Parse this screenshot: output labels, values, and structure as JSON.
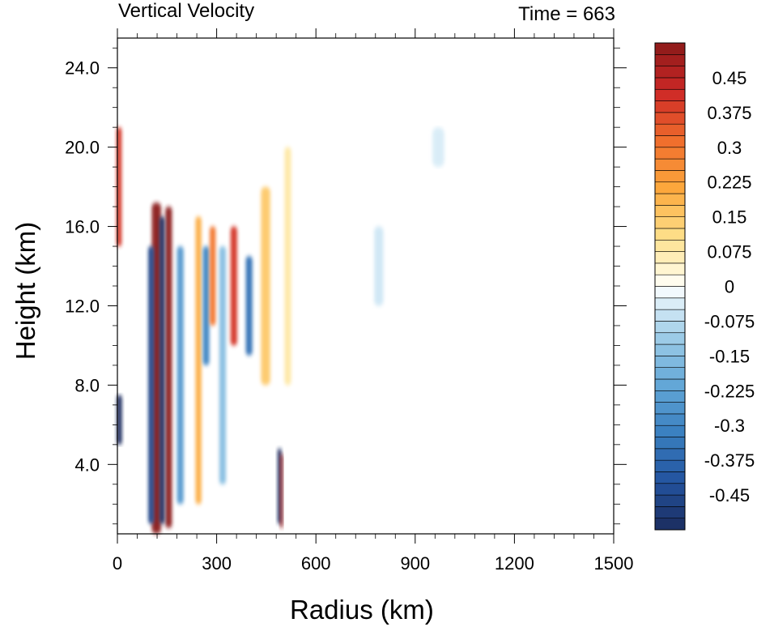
{
  "chart_data": {
    "type": "heatmap",
    "title": "Vertical Velocity",
    "subtitle": "Time = 663",
    "xlabel": "Radius (km)",
    "ylabel": "Height (km)",
    "xlim": [
      0,
      1500
    ],
    "ylim": [
      0.5,
      25.5
    ],
    "xticks": [
      "0",
      "300",
      "600",
      "900",
      "1200",
      "1500"
    ],
    "xtick_values": [
      0,
      300,
      600,
      900,
      1200,
      1500
    ],
    "yticks": [
      "4.0",
      "8.0",
      "12.0",
      "16.0",
      "20.0",
      "24.0"
    ],
    "ytick_values": [
      4,
      8,
      12,
      16,
      20,
      24
    ],
    "colorbar": {
      "min": -0.525,
      "max": 0.525,
      "step": 0.025,
      "labels": [
        "0.45",
        "0.375",
        "0.3",
        "0.225",
        "0.15",
        "0.075",
        "0",
        "-0.075",
        "-0.15",
        "-0.225",
        "-0.3",
        "-0.375",
        "-0.45"
      ],
      "label_values": [
        0.45,
        0.375,
        0.3,
        0.225,
        0.15,
        0.075,
        0,
        -0.075,
        -0.15,
        -0.225,
        -0.3,
        -0.375,
        -0.45
      ],
      "positive_color": "#8b1a1a",
      "negative_color": "#1b2c5e",
      "zero_color": "#ffffff"
    },
    "features": [
      {
        "r_center": 118,
        "r_width": 14,
        "z_bottom": 0.5,
        "z_top": 17.2,
        "w": 0.6
      },
      {
        "r_center": 155,
        "r_width": 10,
        "z_bottom": 0.8,
        "z_top": 17.0,
        "w": 0.6
      },
      {
        "r_center": 135,
        "r_width": 8,
        "z_bottom": 1.0,
        "z_top": 16.5,
        "w": -0.6
      },
      {
        "r_center": 102,
        "r_width": 9,
        "z_bottom": 1.0,
        "z_top": 15.0,
        "w": -0.45
      },
      {
        "r_center": 190,
        "r_width": 10,
        "z_bottom": 2.0,
        "z_top": 15.0,
        "w": -0.25
      },
      {
        "r_center": 245,
        "r_width": 9,
        "z_bottom": 2.0,
        "z_top": 16.5,
        "w": 0.2
      },
      {
        "r_center": 268,
        "r_width": 10,
        "z_bottom": 9.0,
        "z_top": 15.0,
        "w": -0.3
      },
      {
        "r_center": 288,
        "r_width": 9,
        "z_bottom": 11.0,
        "z_top": 16.0,
        "w": 0.3
      },
      {
        "r_center": 318,
        "r_width": 10,
        "z_bottom": 3.0,
        "z_top": 15.0,
        "w": -0.15
      },
      {
        "r_center": 352,
        "r_width": 10,
        "z_bottom": 10.0,
        "z_top": 16.0,
        "w": 0.4
      },
      {
        "r_center": 398,
        "r_width": 10,
        "z_bottom": 9.5,
        "z_top": 14.5,
        "w": -0.35
      },
      {
        "r_center": 448,
        "r_width": 14,
        "z_bottom": 8.0,
        "z_top": 18.0,
        "w": 0.15
      },
      {
        "r_center": 490,
        "r_width": 6,
        "z_bottom": 1.0,
        "z_top": 4.8,
        "w": -0.6
      },
      {
        "r_center": 496,
        "r_width": 4,
        "z_bottom": 0.8,
        "z_top": 4.5,
        "w": 0.5
      },
      {
        "r_center": 5,
        "r_width": 8,
        "z_bottom": 15.0,
        "z_top": 21.0,
        "w": 0.4
      },
      {
        "r_center": 6,
        "r_width": 8,
        "z_bottom": 5.0,
        "z_top": 7.5,
        "w": -0.55
      },
      {
        "r_center": 515,
        "r_width": 10,
        "z_bottom": 8.0,
        "z_top": 20.0,
        "w": 0.08
      },
      {
        "r_center": 790,
        "r_width": 14,
        "z_bottom": 12.0,
        "z_top": 16.0,
        "w": -0.05
      },
      {
        "r_center": 970,
        "r_width": 18,
        "z_bottom": 19.0,
        "z_top": 21.0,
        "w": -0.04
      }
    ]
  }
}
